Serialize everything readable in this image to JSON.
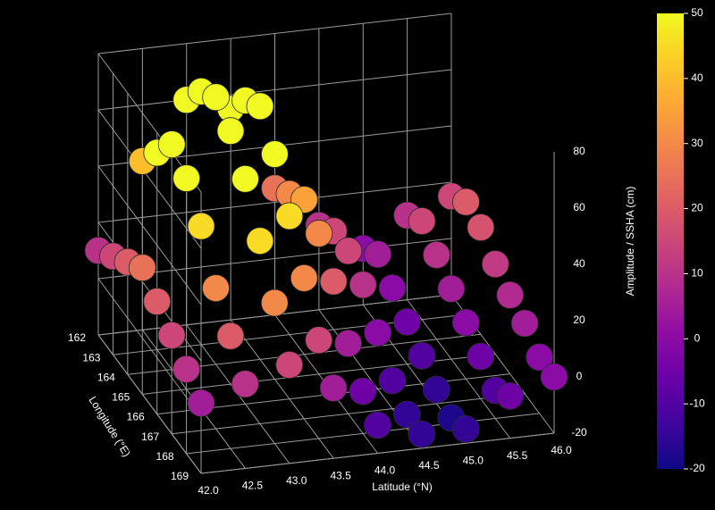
{
  "chart_data": {
    "type": "scatter3d",
    "xlabel": "Latitude (°N)",
    "ylabel": "Longitude (°E)",
    "colorbar_label": "Amplitude / SSHA (cm)",
    "colormap": "plasma",
    "grid": true,
    "xlim": [
      42,
      46
    ],
    "ylim": [
      162,
      169
    ],
    "zlim": [
      -20,
      80
    ],
    "clim": [
      -20,
      50
    ],
    "xticks": [
      {
        "value": 42,
        "label": "42.0"
      },
      42.5,
      {
        "value": 43,
        "label": "43.0"
      },
      43.5,
      {
        "value": 44,
        "label": "44.0"
      },
      44.5,
      {
        "value": 45,
        "label": "45.0"
      },
      45.5,
      {
        "value": 46,
        "label": "46.0"
      }
    ],
    "yticks": [
      162,
      163,
      164,
      165,
      166,
      167,
      168,
      169
    ],
    "zticks": [
      -20,
      0,
      20,
      40,
      60,
      80
    ],
    "cticks": [
      -20,
      -10,
      0,
      10,
      20,
      30,
      40,
      50
    ],
    "x": [
      42,
      42,
      42,
      42,
      42,
      42,
      42,
      42,
      42.5,
      42.5,
      42.5,
      42.5,
      42.5,
      42.5,
      42.5,
      42.5,
      43,
      43,
      43,
      43,
      43,
      43,
      43,
      43,
      43.5,
      43.5,
      43.5,
      43.5,
      43.5,
      43.5,
      43.5,
      43.5,
      44,
      44,
      44,
      44,
      44,
      44,
      44,
      44,
      44.5,
      44.5,
      44.5,
      44.5,
      44.5,
      44.5,
      44.5,
      44.5,
      45,
      45,
      45,
      45,
      45,
      45,
      45,
      45,
      45.5,
      45.5,
      45.5,
      45.5,
      45.5,
      45.5,
      45.5,
      45.5,
      46,
      46,
      46,
      46,
      46,
      46,
      46,
      46
    ],
    "y": [
      162,
      163,
      164,
      165,
      166,
      167,
      168,
      169,
      162,
      163,
      164,
      165,
      166,
      167,
      168,
      169,
      162,
      163,
      164,
      165,
      166,
      167,
      168,
      169,
      162,
      163,
      164,
      165,
      166,
      167,
      168,
      169,
      162,
      163,
      164,
      165,
      166,
      167,
      168,
      169,
      162,
      163,
      164,
      165,
      166,
      167,
      168,
      169,
      162,
      163,
      164,
      165,
      166,
      167,
      168,
      169,
      162,
      163,
      164,
      165,
      166,
      167,
      168,
      169,
      162,
      163,
      164,
      165,
      166,
      167,
      168,
      169
    ],
    "z": [
      10,
      15,
      20,
      25,
      20,
      15,
      10,
      5,
      40,
      50,
      60,
      55,
      45,
      30,
      20,
      10,
      60,
      70,
      75,
      70,
      60,
      45,
      30,
      15,
      55,
      65,
      70,
      60,
      45,
      30,
      15,
      5,
      25,
      30,
      35,
      30,
      20,
      5,
      -5,
      -10,
      10,
      15,
      15,
      10,
      0,
      -10,
      -15,
      -15,
      0,
      5,
      0,
      -5,
      -10,
      -15,
      -18,
      -15,
      10,
      15,
      10,
      5,
      0,
      -5,
      -10,
      -5,
      15,
      20,
      18,
      12,
      8,
      5,
      0,
      0
    ]
  }
}
